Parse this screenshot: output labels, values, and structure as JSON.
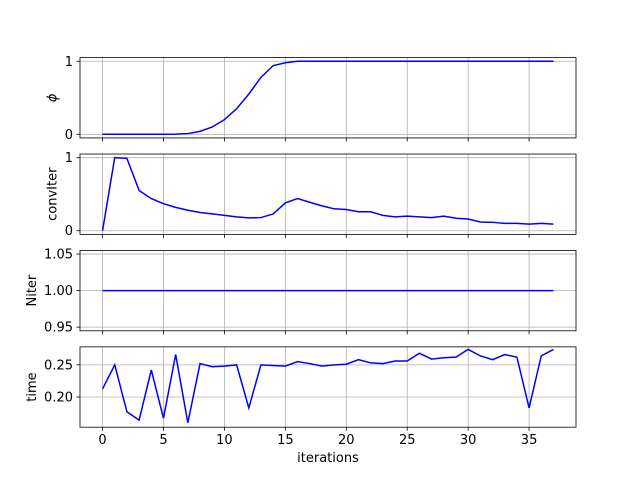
{
  "chart_data": [
    {
      "type": "line",
      "ylabel": "ϕ",
      "x": [
        0,
        1,
        2,
        3,
        4,
        5,
        6,
        7,
        8,
        9,
        10,
        11,
        12,
        13,
        14,
        15,
        16,
        17,
        18,
        19,
        20,
        21,
        22,
        23,
        24,
        25,
        26,
        27,
        28,
        29,
        30,
        31,
        32,
        33,
        34,
        35,
        36,
        37
      ],
      "values": [
        0,
        0,
        0,
        0,
        0,
        0,
        0.003,
        0.01,
        0.04,
        0.1,
        0.2,
        0.35,
        0.55,
        0.78,
        0.94,
        0.98,
        1.0,
        1.0,
        1.0,
        1.0,
        1.0,
        1.0,
        1.0,
        1.0,
        1.0,
        1.0,
        1.0,
        1.0,
        1.0,
        1.0,
        1.0,
        1.0,
        1.0,
        1.0,
        1.0,
        1.0,
        1.0,
        1.0
      ],
      "color": "#0000ff",
      "xlim": [
        -1.85,
        38.85
      ],
      "xticks": [
        0,
        5,
        10,
        15,
        20,
        25,
        30,
        35
      ],
      "ylim": [
        -0.05,
        1.05
      ],
      "yticks": [
        0,
        1
      ],
      "grid": true
    },
    {
      "type": "line",
      "ylabel": "convIter",
      "x": [
        0,
        1,
        2,
        3,
        4,
        5,
        6,
        7,
        8,
        9,
        10,
        11,
        12,
        13,
        14,
        15,
        16,
        17,
        18,
        19,
        20,
        21,
        22,
        23,
        24,
        25,
        26,
        27,
        28,
        29,
        30,
        31,
        32,
        33,
        34,
        35,
        36,
        37
      ],
      "values": [
        0,
        1.0,
        0.99,
        0.55,
        0.44,
        0.37,
        0.32,
        0.28,
        0.25,
        0.23,
        0.21,
        0.19,
        0.175,
        0.18,
        0.23,
        0.38,
        0.44,
        0.39,
        0.34,
        0.3,
        0.29,
        0.26,
        0.26,
        0.21,
        0.19,
        0.2,
        0.19,
        0.18,
        0.2,
        0.17,
        0.16,
        0.12,
        0.115,
        0.1,
        0.1,
        0.09,
        0.1,
        0.09
      ],
      "color": "#0000ff",
      "xlim": [
        -1.85,
        38.85
      ],
      "xticks": [
        0,
        5,
        10,
        15,
        20,
        25,
        30,
        35
      ],
      "ylim": [
        -0.05,
        1.05
      ],
      "yticks": [
        0,
        1
      ],
      "grid": true
    },
    {
      "type": "line",
      "ylabel": "Niter",
      "x": [
        0,
        1,
        2,
        3,
        4,
        5,
        6,
        7,
        8,
        9,
        10,
        11,
        12,
        13,
        14,
        15,
        16,
        17,
        18,
        19,
        20,
        21,
        22,
        23,
        24,
        25,
        26,
        27,
        28,
        29,
        30,
        31,
        32,
        33,
        34,
        35,
        36,
        37
      ],
      "values": [
        1,
        1,
        1,
        1,
        1,
        1,
        1,
        1,
        1,
        1,
        1,
        1,
        1,
        1,
        1,
        1,
        1,
        1,
        1,
        1,
        1,
        1,
        1,
        1,
        1,
        1,
        1,
        1,
        1,
        1,
        1,
        1,
        1,
        1,
        1,
        1,
        1,
        1
      ],
      "color": "#0000ff",
      "xlim": [
        -1.85,
        38.85
      ],
      "xticks": [
        0,
        5,
        10,
        15,
        20,
        25,
        30,
        35
      ],
      "ylim": [
        0.945,
        1.055
      ],
      "yticks": [
        {
          "value": 0.95,
          "label": "0.95"
        },
        {
          "value": 1.0,
          "label": "1.00"
        },
        {
          "value": 1.05,
          "label": "1.05"
        }
      ],
      "grid": true
    },
    {
      "type": "line",
      "ylabel": "time",
      "xlabel": "iterations",
      "x": [
        0,
        1,
        2,
        3,
        4,
        5,
        6,
        7,
        8,
        9,
        10,
        11,
        12,
        13,
        14,
        15,
        16,
        17,
        18,
        19,
        20,
        21,
        22,
        23,
        24,
        25,
        26,
        27,
        28,
        29,
        30,
        31,
        32,
        33,
        34,
        35,
        36,
        37
      ],
      "values": [
        0.2125,
        0.25,
        0.177,
        0.164,
        0.242,
        0.167,
        0.266,
        0.16,
        0.252,
        0.247,
        0.248,
        0.25,
        0.183,
        0.25,
        0.249,
        0.248,
        0.255,
        0.252,
        0.248,
        0.25,
        0.251,
        0.258,
        0.253,
        0.252,
        0.256,
        0.256,
        0.268,
        0.259,
        0.261,
        0.262,
        0.274,
        0.264,
        0.258,
        0.266,
        0.262,
        0.183,
        0.264,
        0.274
      ],
      "color": "#0000ff",
      "xlim": [
        -1.85,
        38.85
      ],
      "xticks": [
        0,
        5,
        10,
        15,
        20,
        25,
        30,
        35
      ],
      "ylim": [
        0.153,
        0.278
      ],
      "yticks": [
        {
          "value": 0.2,
          "label": "0.20"
        },
        {
          "value": 0.25,
          "label": "0.25"
        }
      ],
      "grid": true
    }
  ]
}
